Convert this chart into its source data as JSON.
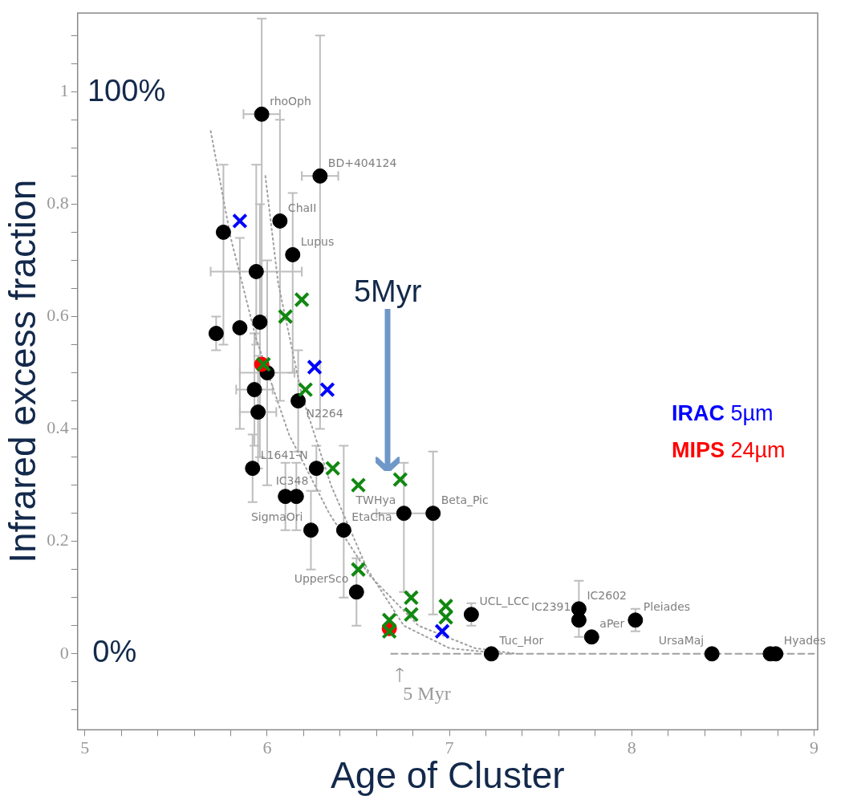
{
  "chart_data": {
    "type": "scatter",
    "xlabel": "Age of Cluster",
    "ylabel": "Infrared excess fraction",
    "xlim": [
      4.96,
      9.02
    ],
    "ylim": [
      -0.135,
      1.14
    ],
    "xticks": [
      5,
      {
        "value": 5.2,
        "label": null
      },
      {
        "value": 5.4,
        "label": null
      },
      {
        "value": 5.6,
        "label": null
      },
      {
        "value": 5.8,
        "label": null
      },
      6,
      {
        "value": 6.2,
        "label": null
      },
      {
        "value": 6.4,
        "label": null
      },
      {
        "value": 6.6,
        "label": null
      },
      {
        "value": 6.8,
        "label": null
      },
      7,
      {
        "value": 7.2,
        "label": null
      },
      {
        "value": 7.4,
        "label": null
      },
      {
        "value": 7.6,
        "label": null
      },
      {
        "value": 7.8,
        "label": null
      },
      8,
      {
        "value": 8.2,
        "label": null
      },
      {
        "value": 8.4,
        "label": null
      },
      {
        "value": 8.6,
        "label": null
      },
      {
        "value": 8.8,
        "label": null
      },
      9
    ],
    "yticks": [
      {
        "value": -0.1,
        "label": null
      },
      {
        "value": -0.05,
        "label": null
      },
      0,
      {
        "value": 0.05,
        "label": null
      },
      {
        "value": 0.1,
        "label": null
      },
      {
        "value": 0.15,
        "label": null
      },
      0.2,
      {
        "value": 0.25,
        "label": null
      },
      {
        "value": 0.3,
        "label": null
      },
      {
        "value": 0.35,
        "label": null
      },
      0.4,
      {
        "value": 0.45,
        "label": null
      },
      {
        "value": 0.5,
        "label": null
      },
      {
        "value": 0.55,
        "label": null
      },
      0.6,
      {
        "value": 0.65,
        "label": null
      },
      {
        "value": 0.7,
        "label": null
      },
      {
        "value": 0.75,
        "label": null
      },
      0.8,
      {
        "value": 0.85,
        "label": null
      },
      {
        "value": 0.9,
        "label": null
      },
      {
        "value": 0.95,
        "label": null
      },
      1,
      {
        "value": 1.05,
        "label": null
      },
      {
        "value": 1.1,
        "label": null
      }
    ],
    "grid": false,
    "legend": "right",
    "annotations": [
      "100%",
      "0%",
      "5Myr",
      "5 Myr",
      {
        "text": "rhoOph",
        "x": 5.97,
        "y": 0.96
      },
      {
        "text": "BD+404124",
        "x": 6.29,
        "y": 0.85
      },
      {
        "text": "ChaII",
        "x": 6.07,
        "y": 0.77
      },
      {
        "text": "Lupus",
        "x": 6.14,
        "y": 0.71
      },
      {
        "text": "N2264",
        "x": 6.17,
        "y": 0.45
      },
      {
        "text": "L1641-N",
        "x": 5.92,
        "y": 0.33
      },
      {
        "text": "IC348",
        "x": 6.27,
        "y": 0.33
      },
      {
        "text": "SigmaOri",
        "x": 6.24,
        "y": 0.22
      },
      {
        "text": "EtaCha",
        "x": 6.42,
        "y": 0.22
      },
      {
        "text": "TWHya",
        "x": 6.75,
        "y": 0.25
      },
      {
        "text": "Beta_Pic",
        "x": 6.91,
        "y": 0.25
      },
      {
        "text": "UpperSco",
        "x": 6.49,
        "y": 0.11
      },
      {
        "text": "UCL_LCC",
        "x": 7.12,
        "y": 0.07
      },
      {
        "text": "Tuc_Hor",
        "x": 7.23,
        "y": 0
      },
      {
        "text": "IC2602",
        "x": 7.71,
        "y": 0.08
      },
      {
        "text": "IC2391",
        "x": 7.71,
        "y": 0.06
      },
      {
        "text": "Pleiades",
        "x": 8.02,
        "y": 0.06
      },
      {
        "text": "aPer",
        "x": 7.78,
        "y": 0.03
      },
      {
        "text": "UrsaMaj",
        "x": 8.44,
        "y": 0
      },
      {
        "text": "Hyades",
        "x": 8.79,
        "y": 0
      }
    ],
    "series": [
      {
        "type": "line",
        "color": "#a0a0a0",
        "marker": "none",
        "line_style": "dotted",
        "x": [
          5.69,
          5.8,
          5.94,
          6.12,
          6.34,
          6.56,
          6.83,
          7.14,
          7.37
        ],
        "values": [
          0.93,
          0.74,
          0.56,
          0.39,
          0.25,
          0.14,
          0.05,
          0.01,
          0
        ]
      },
      {
        "type": "line",
        "color": "#a0a0a0",
        "marker": "none",
        "line_style": "dotted",
        "x": [
          5.99,
          6.06,
          6.19,
          6.35,
          6.55,
          6.75,
          7.0,
          7.3
        ],
        "values": [
          0.85,
          0.66,
          0.46,
          0.3,
          0.15,
          0.05,
          0.01,
          0
        ]
      },
      {
        "type": "line",
        "color": "#a0a0a0",
        "marker": "none",
        "line_style": "dashed",
        "x": [
          6.68,
          9.0
        ],
        "values": [
          0,
          0
        ]
      },
      {
        "color": "#000000",
        "marker": "circle",
        "x": [
          5.97,
          6.29,
          6.07,
          6.14,
          5.76,
          5.94,
          5.72,
          5.85,
          5.96,
          6.0,
          5.93,
          6.17,
          5.95,
          5.92,
          6.27,
          6.1,
          6.16,
          6.24,
          6.42,
          6.75,
          6.91,
          6.49,
          7.12,
          7.23,
          7.71,
          7.71,
          7.78,
          8.02,
          8.44,
          8.76,
          8.79
        ],
        "values": [
          0.96,
          0.85,
          0.77,
          0.71,
          0.75,
          0.68,
          0.57,
          0.58,
          0.59,
          0.5,
          0.47,
          0.45,
          0.43,
          0.33,
          0.33,
          0.28,
          0.28,
          0.22,
          0.22,
          0.25,
          0.25,
          0.11,
          0.07,
          0,
          0.08,
          0.06,
          0.03,
          0.06,
          0,
          0,
          0
        ],
        "errors": [
          [
            0.6,
            1.13
          ],
          [
            0.4,
            1.1
          ],
          [
            0.45,
            0.95
          ],
          [
            0.5,
            0.82
          ],
          [
            0.55,
            0.87
          ],
          [
            0.55,
            0.87
          ],
          0.03,
          [
            0.4,
            0.74
          ],
          [
            0.35,
            0.8
          ],
          [
            0.3,
            0.7
          ],
          0.1,
          0.09,
          0.1,
          0.06,
          0.04,
          0.06,
          0.06,
          0.07,
          [
            0.1,
            0.37
          ],
          [
            0.11,
            0.34
          ],
          [
            0.07,
            0.36
          ],
          0.06,
          0.02,
          null,
          [
            0.03,
            0.13
          ],
          null,
          null,
          0.02,
          null,
          null,
          null
        ],
        "xerrors": [
          0.1,
          0.1,
          null,
          null,
          null,
          0.25,
          null,
          null,
          null,
          0.15,
          0.1,
          null,
          0.1,
          null,
          null,
          null,
          null,
          null,
          null,
          0.15,
          null,
          null,
          null,
          null,
          null,
          null,
          null,
          null,
          null,
          null,
          null
        ]
      },
      {
        "name": "MIPS 24µm",
        "color": "#ff0000",
        "marker": "circle",
        "x": [
          5.97,
          6.67
        ],
        "values": [
          0.515,
          0.045
        ]
      },
      {
        "color": "#118811",
        "marker": "cross",
        "x": [
          6.1,
          6.19,
          5.98,
          6.21,
          6.36,
          6.5,
          6.73,
          6.5,
          6.67,
          6.67,
          6.79,
          6.79,
          6.98,
          6.98
        ],
        "values": [
          0.6,
          0.63,
          0.515,
          0.47,
          0.33,
          0.3,
          0.31,
          0.15,
          0.06,
          0.04,
          0.1,
          0.07,
          0.085,
          0.065
        ]
      },
      {
        "name": "IRAC 5µm",
        "color": "#0000ff",
        "marker": "cross",
        "x": [
          5.85,
          6.26,
          6.33,
          6.96
        ],
        "values": [
          0.77,
          0.51,
          0.47,
          0.04
        ]
      }
    ]
  }
}
